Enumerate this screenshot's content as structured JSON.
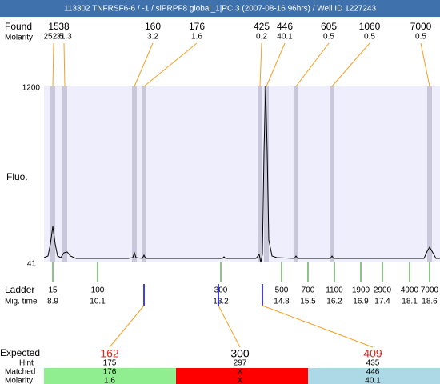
{
  "title": "113302  TNFRSF6-6 / -1 / siPRPF8 global_1|PC 3 (2007-08-16 96hrs) / Well ID 1227243",
  "found": {
    "label": "Found",
    "values": [
      15,
      38,
      160,
      176,
      425,
      446,
      605,
      1060,
      7000
    ]
  },
  "molarity": {
    "label": "Molarity",
    "values": [
      252.5,
      31.3,
      3.2,
      1.6,
      0.2,
      40.1,
      0.5,
      0.5,
      0.5
    ]
  },
  "axis": {
    "label": "Fluo.",
    "top": 1200,
    "bottom": 41
  },
  "ladder": {
    "label": "Ladder",
    "values": [
      15,
      100,
      300,
      500,
      700,
      1100,
      1900,
      2900,
      4900,
      7000
    ]
  },
  "mig_time": {
    "label": "Mig. time",
    "values": [
      8.9,
      10.1,
      13.2,
      14.8,
      15.5,
      16.2,
      16.9,
      17.4,
      18.1,
      18.6
    ]
  },
  "expected": {
    "label": "Expected",
    "values": [
      162,
      300,
      409
    ]
  },
  "hint": {
    "label": "Hint",
    "values": [
      175,
      297,
      435
    ]
  },
  "matched": {
    "label": "Matched",
    "values": [
      176,
      "X",
      446
    ]
  },
  "matched_molarity": {
    "label": "Molarity",
    "values": [
      1.6,
      "X",
      40.1
    ]
  }
}
